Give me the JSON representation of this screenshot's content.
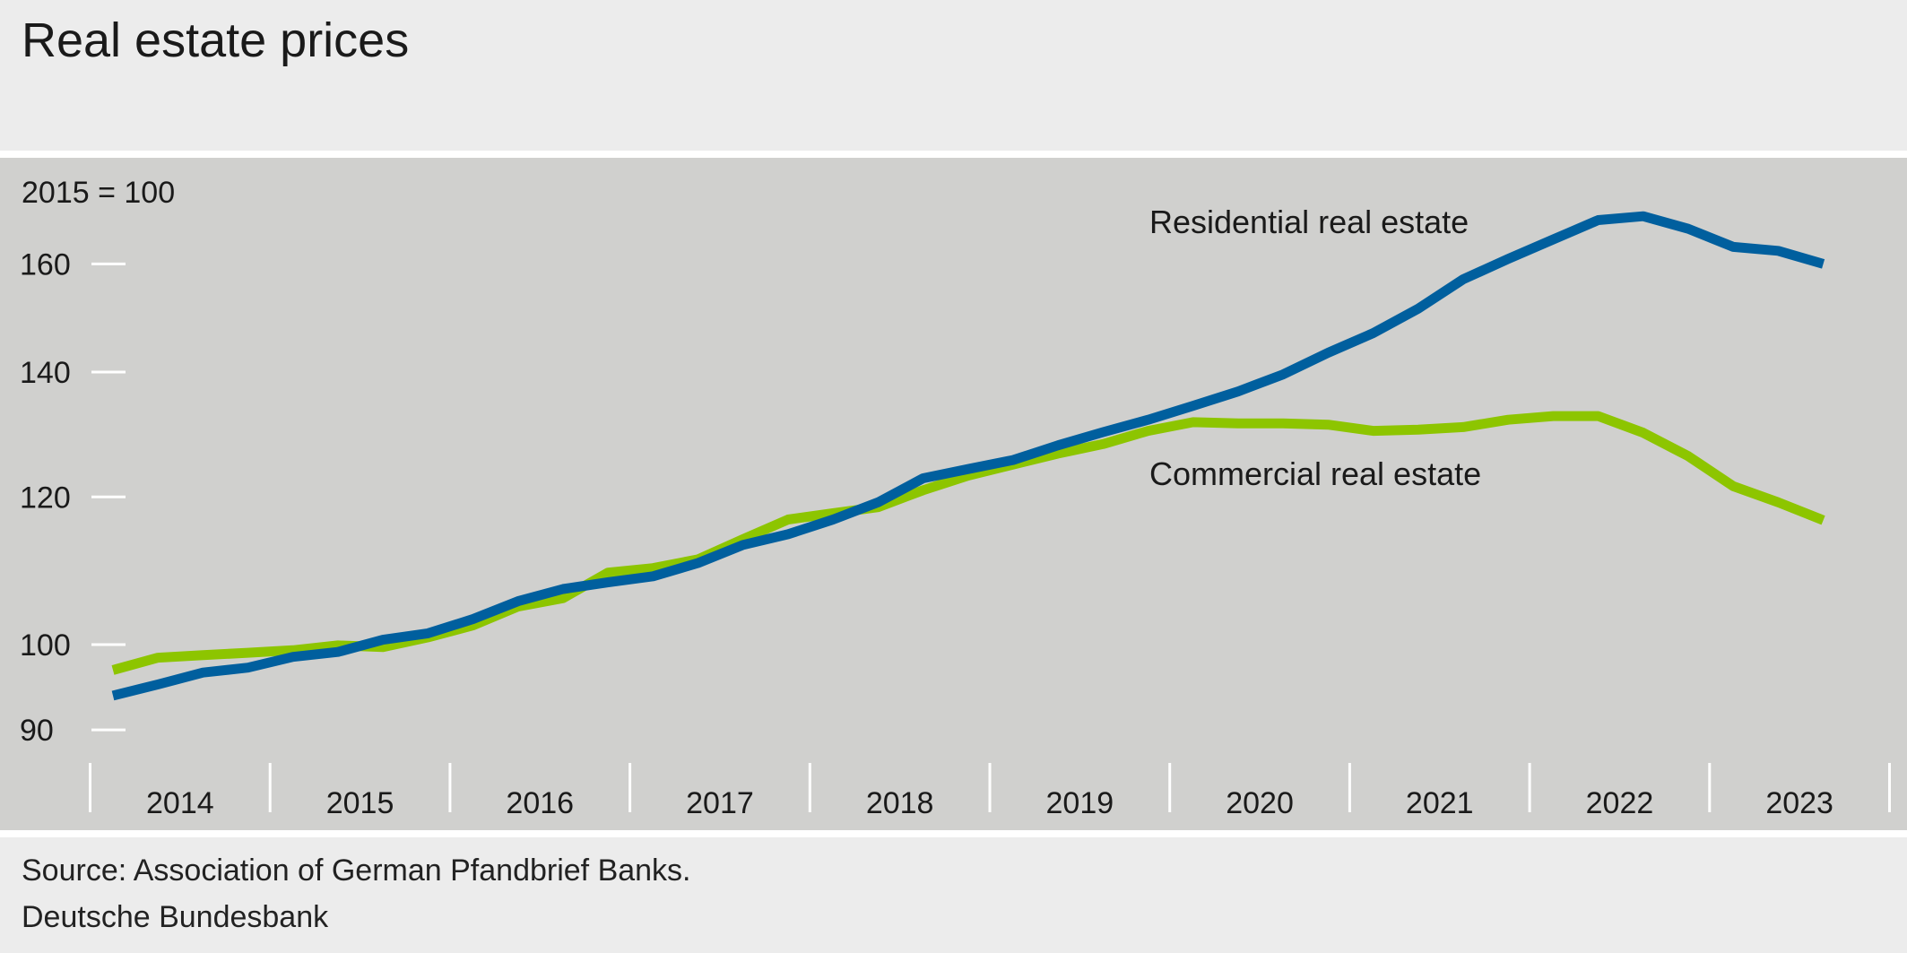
{
  "chart_data": {
    "type": "line",
    "title": "Real estate prices",
    "ylabel": "2015 = 100",
    "yscale": "log",
    "ylim": [
      86,
      176
    ],
    "yticks": [
      90,
      100,
      120,
      140,
      160
    ],
    "x_frequency": "quarterly",
    "x": [
      "2014Q1",
      "2014Q2",
      "2014Q3",
      "2014Q4",
      "2015Q1",
      "2015Q2",
      "2015Q3",
      "2015Q4",
      "2016Q1",
      "2016Q2",
      "2016Q3",
      "2016Q4",
      "2017Q1",
      "2017Q2",
      "2017Q3",
      "2017Q4",
      "2018Q1",
      "2018Q2",
      "2018Q3",
      "2018Q4",
      "2019Q1",
      "2019Q2",
      "2019Q3",
      "2019Q4",
      "2020Q1",
      "2020Q2",
      "2020Q3",
      "2020Q4",
      "2021Q1",
      "2021Q2",
      "2021Q3",
      "2021Q4",
      "2022Q1",
      "2022Q2",
      "2022Q3",
      "2022Q4",
      "2023Q1",
      "2023Q2",
      "2023Q3"
    ],
    "year_labels": [
      "2014",
      "2015",
      "2016",
      "2017",
      "2018",
      "2019",
      "2020",
      "2021",
      "2022",
      "2023"
    ],
    "grid": false,
    "series": [
      {
        "name": "Residential real estate",
        "color": "#005f9e",
        "values": [
          93.9,
          95.2,
          96.6,
          97.2,
          98.5,
          99.1,
          100.6,
          101.4,
          103.2,
          105.5,
          107.1,
          108.0,
          108.8,
          110.6,
          113.1,
          114.6,
          116.7,
          119.2,
          122.8,
          124.2,
          125.6,
          127.9,
          130.0,
          132.0,
          134.3,
          136.7,
          139.6,
          143.4,
          146.9,
          151.4,
          157.0,
          161.0,
          164.9,
          168.9,
          169.7,
          167.1,
          163.4,
          162.6,
          160.0
        ]
      },
      {
        "name": "Commercial real estate",
        "color": "#8dc500",
        "values": [
          96.9,
          98.4,
          98.7,
          99.0,
          99.3,
          99.9,
          99.7,
          100.9,
          102.4,
          104.8,
          105.9,
          109.3,
          109.9,
          111.1,
          113.9,
          116.7,
          117.6,
          118.5,
          121.0,
          123.2,
          124.9,
          126.6,
          128.1,
          130.2,
          131.6,
          131.4,
          131.4,
          131.2,
          130.2,
          130.4,
          130.8,
          132.0,
          132.6,
          132.6,
          129.9,
          126.2,
          121.6,
          119.2,
          116.6
        ]
      }
    ]
  },
  "footer": {
    "source": "Source: Association of German Pfandbrief Banks.",
    "publisher": "Deutsche Bundesbank"
  }
}
